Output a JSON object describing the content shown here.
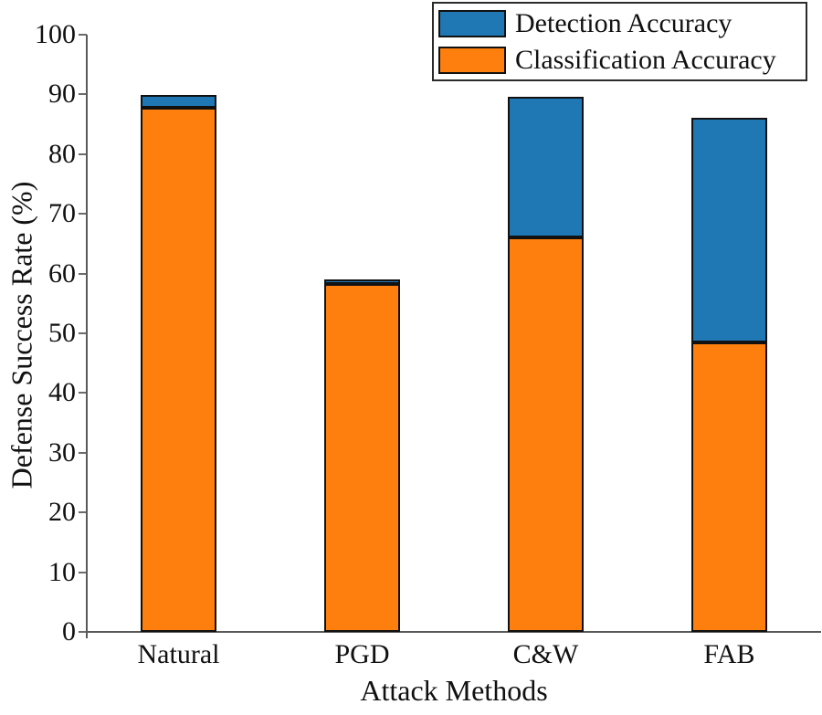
{
  "chart_data": {
    "type": "bar",
    "stacked": true,
    "title": "",
    "xlabel": "Attack Methods",
    "ylabel": "Defense Success Rate (%)",
    "categories": [
      "Natural",
      "PGD",
      "C&W",
      "FAB"
    ],
    "series": [
      {
        "name": "Classification Accuracy",
        "color": "#FF7F0E",
        "values": [
          87.7,
          58.3,
          66.1,
          48.5
        ]
      },
      {
        "name": "Detection Accuracy",
        "color": "#1F77B4",
        "values": [
          2.2,
          0.5,
          23.5,
          37.6
        ]
      }
    ],
    "stack_totals": [
      89.9,
      58.8,
      89.6,
      86.1
    ],
    "ylim": [
      0,
      100
    ],
    "yticks": [
      0,
      10,
      20,
      30,
      40,
      50,
      60,
      70,
      80,
      90,
      100
    ],
    "grid": false,
    "bar_edge_color": "#111111",
    "legend": {
      "position": "top-right",
      "entries": [
        {
          "label": "Detection Accuracy",
          "color": "#1F77B4"
        },
        {
          "label": "Classification Accuracy",
          "color": "#FF7F0E"
        }
      ]
    }
  },
  "colors": {
    "detection_blue": "#1F77B4",
    "classification_orange": "#FF7F0E",
    "axis_line": "#5A5A5A",
    "text": "#111111",
    "background": "#FFFFFF"
  }
}
